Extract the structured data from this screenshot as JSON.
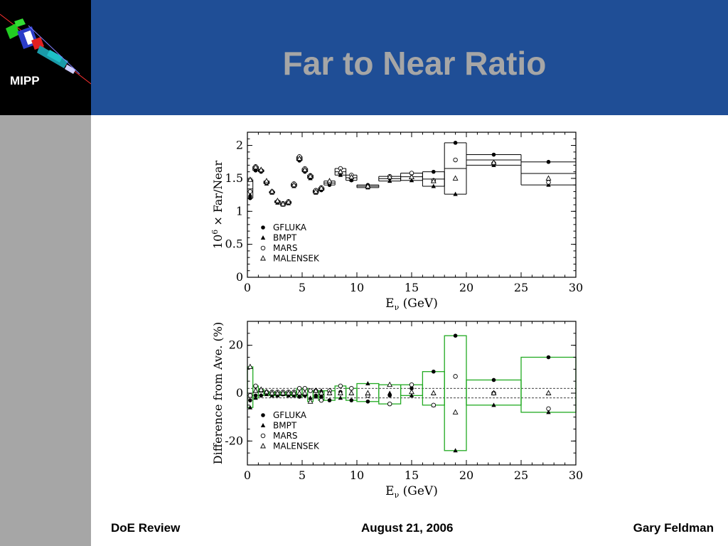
{
  "slide": {
    "title": "Far to Near Ratio",
    "logo_text": "MIPP",
    "footer_left": "DoE Review",
    "footer_center": "August 21, 2006",
    "footer_right": "Gary Feldman",
    "header_color": "#1f4e96",
    "title_color": "#a6a6a6",
    "side_color": "#a6a6a6"
  },
  "chart_data": [
    {
      "type": "line",
      "title": "",
      "xlabel": "E_ν (GeV)",
      "ylabel": "10^6 × Far/Near",
      "xlim": [
        0,
        30
      ],
      "ylim": [
        0,
        2.2
      ],
      "xticks": [
        "0",
        "5",
        "10",
        "15",
        "20",
        "25",
        "30"
      ],
      "yticks": [
        "0",
        "0.5",
        "1",
        "1.5",
        "2"
      ],
      "legend": [
        "GFLUKA",
        "BMPT",
        "MARS",
        "MALENSEK"
      ],
      "legend_position": "bottom-left",
      "grid": false,
      "x": [
        0.25,
        0.75,
        1.25,
        1.75,
        2.25,
        2.75,
        3.25,
        3.75,
        4.25,
        4.75,
        5.25,
        5.75,
        6.25,
        6.75,
        7.5,
        8.5,
        9.5,
        11,
        13,
        15,
        17,
        19,
        22.5,
        27.5
      ],
      "bin_edges": [
        0,
        0.5,
        1,
        1.5,
        2,
        2.5,
        3,
        3.5,
        4,
        4.5,
        5,
        5.5,
        6,
        6.5,
        7,
        8,
        9,
        10,
        12,
        14,
        16,
        18,
        20,
        25,
        30
      ],
      "series": [
        {
          "name": "GFLUKA",
          "marker": "filled-circle",
          "values": [
            1.2,
            1.62,
            1.6,
            1.45,
            1.3,
            1.15,
            1.1,
            1.15,
            1.4,
            1.77,
            1.6,
            1.55,
            1.3,
            1.32,
            1.4,
            1.58,
            1.47,
            1.4,
            1.5,
            1.57,
            1.6,
            2.04,
            1.86,
            1.75
          ]
        },
        {
          "name": "BMPT",
          "marker": "filled-triangle",
          "values": [
            1.25,
            1.65,
            1.62,
            1.42,
            1.28,
            1.13,
            1.1,
            1.12,
            1.38,
            1.8,
            1.62,
            1.5,
            1.28,
            1.34,
            1.44,
            1.55,
            1.48,
            1.36,
            1.46,
            1.47,
            1.38,
            1.26,
            1.7,
            1.4
          ]
        },
        {
          "name": "MARS",
          "marker": "open-circle",
          "values": [
            1.3,
            1.68,
            1.62,
            1.44,
            1.3,
            1.15,
            1.12,
            1.15,
            1.42,
            1.83,
            1.65,
            1.54,
            1.32,
            1.36,
            1.44,
            1.65,
            1.55,
            1.37,
            1.53,
            1.58,
            1.47,
            1.78,
            1.73,
            1.44
          ]
        },
        {
          "name": "MALENSEK",
          "marker": "open-triangle",
          "values": [
            1.48,
            1.67,
            1.63,
            1.46,
            1.3,
            1.16,
            1.11,
            1.14,
            1.4,
            1.8,
            1.63,
            1.53,
            1.3,
            1.35,
            1.46,
            1.6,
            1.52,
            1.38,
            1.52,
            1.52,
            1.46,
            1.5,
            1.74,
            1.5
          ]
        }
      ],
      "band_low": [
        1.2,
        1.62,
        1.6,
        1.42,
        1.28,
        1.13,
        1.1,
        1.12,
        1.38,
        1.77,
        1.6,
        1.5,
        1.28,
        1.32,
        1.4,
        1.55,
        1.47,
        1.36,
        1.46,
        1.47,
        1.38,
        1.26,
        1.7,
        1.4
      ],
      "band_high": [
        1.48,
        1.68,
        1.63,
        1.46,
        1.3,
        1.16,
        1.12,
        1.15,
        1.42,
        1.83,
        1.65,
        1.55,
        1.32,
        1.36,
        1.46,
        1.65,
        1.55,
        1.4,
        1.53,
        1.58,
        1.6,
        2.04,
        1.86,
        1.75
      ]
    },
    {
      "type": "scatter",
      "title": "",
      "xlabel": "E_ν (GeV)",
      "ylabel": "Difference from Ave. (%)",
      "xlim": [
        0,
        30
      ],
      "ylim": [
        -30,
        30
      ],
      "xticks": [
        "0",
        "5",
        "10",
        "15",
        "20",
        "25",
        "30"
      ],
      "yticks": [
        "-20",
        "0",
        "20"
      ],
      "legend": [
        "GFLUKA",
        "BMPT",
        "MARS",
        "MALENSEK"
      ],
      "legend_position": "bottom-left",
      "grid": false,
      "reference_lines": [
        2,
        -2
      ],
      "box_color": "#22aa22",
      "x": [
        0.25,
        0.75,
        1.25,
        1.75,
        2.25,
        2.75,
        3.25,
        3.75,
        4.25,
        4.75,
        5.25,
        5.75,
        6.25,
        6.75,
        7.5,
        8.5,
        9.5,
        11,
        13,
        15,
        17,
        19,
        22.5,
        27.5
      ],
      "bin_edges": [
        0,
        0.5,
        1,
        1.5,
        2,
        2.5,
        3,
        3.5,
        4,
        4.5,
        5,
        5.5,
        6,
        6.5,
        7,
        8,
        9,
        10,
        12,
        14,
        16,
        18,
        20,
        25,
        30
      ],
      "series": [
        {
          "name": "GFLUKA",
          "marker": "filled-circle",
          "values": [
            -3,
            -1,
            -1,
            0.5,
            0.5,
            0,
            -0.5,
            0.5,
            0,
            -1.5,
            -1,
            1,
            -1,
            -1.5,
            -3,
            0.5,
            -3,
            -3.5,
            -1,
            2,
            9,
            24,
            5.5,
            15
          ]
        },
        {
          "name": "BMPT",
          "marker": "filled-triangle",
          "values": [
            -6,
            -2,
            1,
            -0.5,
            -1,
            -1,
            -0.5,
            -1,
            -1,
            0,
            -0.5,
            -2,
            -1.5,
            1,
            1,
            -2,
            0,
            4,
            0,
            -1,
            -5,
            -24,
            -5,
            -8
          ]
        },
        {
          "name": "MARS",
          "marker": "open-circle",
          "values": [
            -1,
            3,
            1,
            0.5,
            0.5,
            0.5,
            0.5,
            0.5,
            0.5,
            2,
            2,
            1,
            1,
            -3,
            1,
            3,
            2,
            -1,
            -4.5,
            3.5,
            -5,
            7,
            0,
            -6.5
          ]
        },
        {
          "name": "MALENSEK",
          "marker": "open-triangle",
          "values": [
            11,
            1,
            1.5,
            0.5,
            0,
            0,
            0,
            0,
            0,
            0,
            0,
            -3.5,
            1,
            0,
            0,
            0,
            0,
            0,
            3.5,
            0.5,
            0,
            -8,
            0,
            0
          ]
        }
      ]
    }
  ]
}
